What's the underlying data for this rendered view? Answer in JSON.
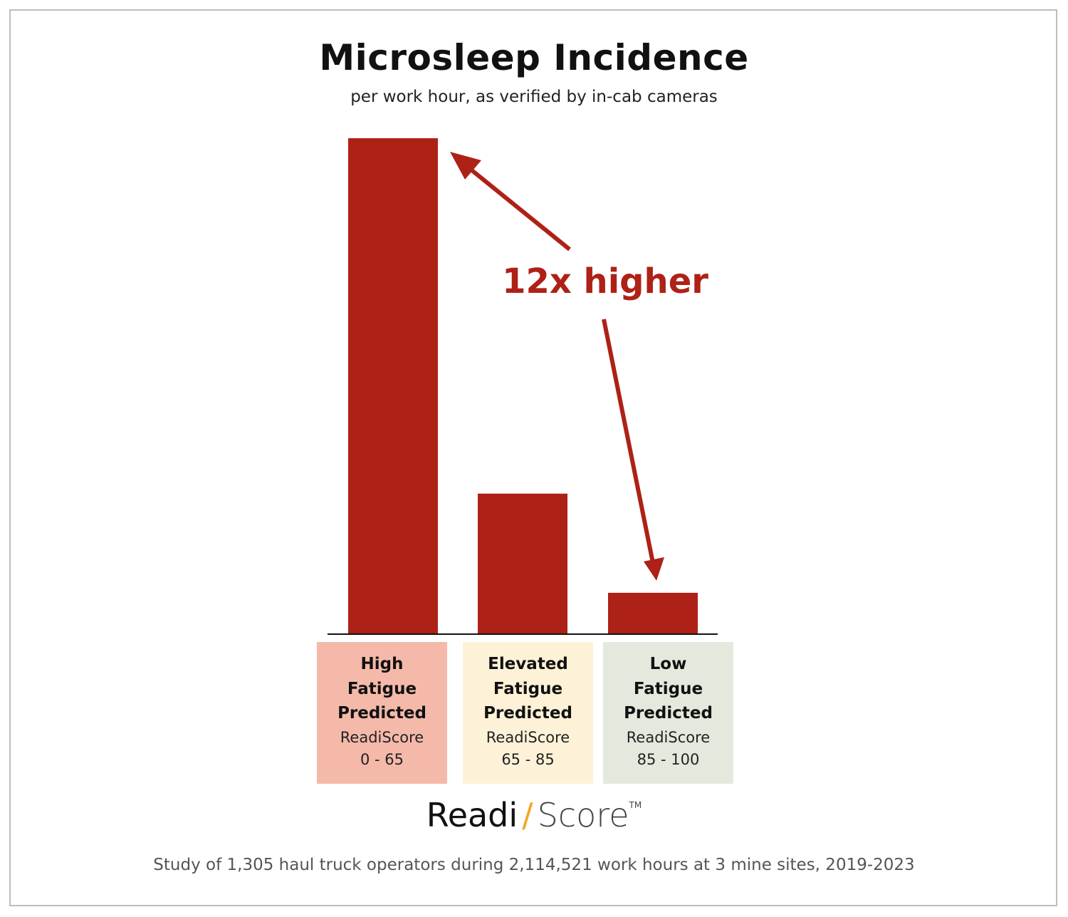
{
  "chart_data": {
    "type": "bar",
    "title": "Microsleep Incidence",
    "subtitle": "per work hour, as verified by in-cab cameras",
    "categories": [
      "High Fatigue Predicted",
      "Elevated Fatigue Predicted",
      "Low Fatigue Predicted"
    ],
    "values": [
      12,
      3.4,
      1
    ],
    "ylim": [
      0,
      12
    ],
    "grid": false,
    "bar_color": "#ae2116",
    "annotation": {
      "text": "12x higher",
      "color": "#ae2116"
    }
  },
  "categories": [
    {
      "title": "High\nFatigue\nPredicted",
      "score_label": "ReadiScore",
      "score_range": "0 - 65",
      "bg_color": "#f5b9aa"
    },
    {
      "title": "Elevated\nFatigue\nPredicted",
      "score_label": "ReadiScore",
      "score_range": "65 - 85",
      "bg_color": "#fdf2d7"
    },
    {
      "title": "Low\nFatigue\nPredicted",
      "score_label": "ReadiScore",
      "score_range": "85 - 100",
      "bg_color": "#e3eadd"
    }
  ],
  "logo": {
    "part1": "Readi",
    "slash": "/",
    "part2": "Score",
    "tm": "TM"
  },
  "footnote": "Study of 1,305 haul truck operators during 2,114,521 work hours at 3 mine sites, 2019-2023"
}
